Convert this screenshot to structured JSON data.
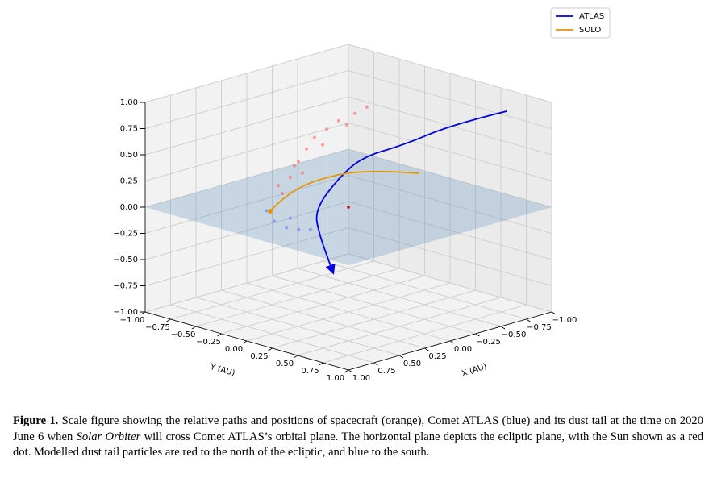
{
  "chart_data": {
    "type": "line3d",
    "xlabel": "X (AU)",
    "ylabel": "Y (AU)",
    "xlim": [
      -1,
      1
    ],
    "ylim": [
      -1,
      1
    ],
    "zlim": [
      -1,
      1
    ],
    "xticks": [
      {
        "value": -1,
        "label": "−1.00"
      },
      {
        "value": -0.75,
        "label": "−0.75"
      },
      {
        "value": -0.5,
        "label": "−0.50"
      },
      {
        "value": -0.25,
        "label": "−0.25"
      },
      {
        "value": 0,
        "label": "0.00"
      },
      {
        "value": 0.25,
        "label": "0.25"
      },
      {
        "value": 0.5,
        "label": "0.50"
      },
      {
        "value": 0.75,
        "label": "0.75"
      },
      {
        "value": 1,
        "label": "1.00"
      }
    ],
    "yticks": [
      {
        "value": -1,
        "label": "−1.00"
      },
      {
        "value": -0.75,
        "label": "−0.75"
      },
      {
        "value": -0.5,
        "label": "−0.50"
      },
      {
        "value": -0.25,
        "label": "−0.25"
      },
      {
        "value": 0,
        "label": "0.00"
      },
      {
        "value": 0.25,
        "label": "0.25"
      },
      {
        "value": 0.5,
        "label": "0.50"
      },
      {
        "value": 0.75,
        "label": "0.75"
      },
      {
        "value": 1,
        "label": "1.00"
      }
    ],
    "zticks": [
      {
        "value": -1,
        "label": "−1.00"
      },
      {
        "value": -0.75,
        "label": "−0.75"
      },
      {
        "value": -0.5,
        "label": "−0.50"
      },
      {
        "value": -0.25,
        "label": "−0.25"
      },
      {
        "value": 0,
        "label": "0.00"
      },
      {
        "value": 0.25,
        "label": "0.25"
      },
      {
        "value": 0.5,
        "label": "0.50"
      },
      {
        "value": 0.75,
        "label": "0.75"
      },
      {
        "value": 1,
        "label": "1.00"
      }
    ],
    "grid": true,
    "legend": "upper right",
    "plane_color": "#4682b4",
    "series": [
      {
        "name": "ATLAS",
        "color": "#0000e0",
        "arrow": true,
        "x": [
          -0.9,
          -0.7,
          -0.4,
          -0.2,
          0.1,
          0.3,
          0.45,
          0.7
        ],
        "y": [
          0.66,
          0.316,
          0.14,
          -0.057,
          0.005,
          -0.03,
          0.16,
          0.55
        ],
        "z": [
          0.85,
          0.68,
          0.52,
          0.41,
          0.31,
          0.05,
          -0.085,
          -0.28
        ]
      },
      {
        "name": "SOLO",
        "color": "#e69500",
        "marker": true,
        "x": [
          0.455,
          0.07,
          -0.445,
          -0.685,
          -0.842
        ],
        "y": [
          -0.315,
          -0.5,
          -0.54,
          -0.385,
          -0.144
        ],
        "z": [
          0,
          0.05,
          0.05,
          0.05,
          0.05
        ]
      }
    ],
    "points": [
      {
        "color": "#ff6060",
        "x": [
          0.225,
          0.186,
          0.146,
          0.106,
          0.067,
          0.007,
          -0.052,
          -0.132,
          -0.191,
          0.245,
          0.166,
          0.126,
          0.027,
          -0.092
        ],
        "y": [
          -0.425,
          -0.386,
          -0.346,
          -0.306,
          -0.267,
          -0.207,
          -0.148,
          -0.068,
          -0.009,
          -0.445,
          -0.366,
          -0.326,
          -0.227,
          -0.108
        ],
        "z": [
          0.075,
          0.23,
          0.38,
          0.5,
          0.61,
          0.69,
          0.77,
          0.84,
          0.9,
          0.15,
          0.34,
          0.27,
          0.54,
          0.73
        ]
      },
      {
        "color": "#6070ff",
        "x": [
          0.305,
          0.265,
          0.205,
          0.145,
          0.087,
          0.186
        ],
        "y": [
          -0.505,
          -0.465,
          -0.405,
          -0.345,
          -0.287,
          -0.386
        ],
        "z": [
          -0.09,
          -0.19,
          -0.25,
          -0.27,
          -0.27,
          -0.16
        ]
      },
      {
        "color": "#d00000",
        "x": [
          0
        ],
        "y": [
          0
        ],
        "z": [
          0
        ]
      }
    ]
  },
  "caption": [
    {
      "text": "Figure 1.",
      "style": "bold"
    },
    {
      "text": " Scale figure showing the relative paths and positions of spacecraft (orange), Comet ATLAS (blue) and its dust tail at the time on 2020 June 6 when "
    },
    {
      "text": "Solar Orbiter",
      "style": "italic"
    },
    {
      "text": " will cross Comet ATLAS’s orbital plane. The horizontal plane depicts the ecliptic plane, with the Sun shown as a red dot. Modelled dust tail particles are red to the north of the ecliptic, and blue to the south."
    }
  ]
}
